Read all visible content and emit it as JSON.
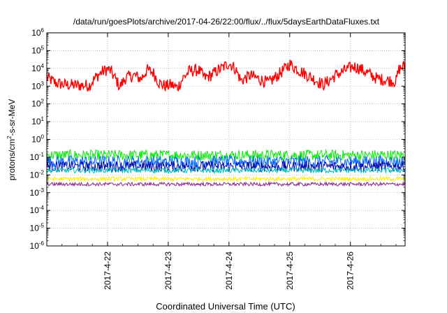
{
  "chart_data": {
    "type": "line",
    "title": "/data/run/goesPlots/archive/2017-04-26/22:00/flux/../flux/5daysEarthDataFluxes.txt",
    "xlabel": "Coordinated Universal Time (UTC)",
    "ylabel": {
      "prefix": "protons/cm",
      "sup": "2",
      "suffix": "-s-sr-MeV"
    },
    "yscale": "log",
    "ylim": [
      1e-06,
      1000000.0
    ],
    "xlim": [
      0,
      5.9
    ],
    "grid": true,
    "yticks": [
      {
        "value": -6,
        "base": "10",
        "exp": "-6"
      },
      {
        "value": -5,
        "base": "10",
        "exp": "-5"
      },
      {
        "value": -4,
        "base": "10",
        "exp": "-4"
      },
      {
        "value": -3,
        "base": "10",
        "exp": "-3"
      },
      {
        "value": -2,
        "base": "10",
        "exp": "-2"
      },
      {
        "value": -1,
        "base": "10",
        "exp": "-1"
      },
      {
        "value": 0,
        "base": "10",
        "exp": "0"
      },
      {
        "value": 1,
        "base": "10",
        "exp": "1"
      },
      {
        "value": 2,
        "base": "10",
        "exp": "2"
      },
      {
        "value": 3,
        "base": "10",
        "exp": "3"
      },
      {
        "value": 4,
        "base": "10",
        "exp": "4"
      },
      {
        "value": 5,
        "base": "10",
        "exp": "5"
      },
      {
        "value": 6,
        "base": "10",
        "exp": "6"
      }
    ],
    "xticks": [
      {
        "value": 1,
        "label": "2017-4-22"
      },
      {
        "value": 2,
        "label": "2017-4-23"
      },
      {
        "value": 3,
        "label": "2017-4-24"
      },
      {
        "value": 4,
        "label": "2017-4-25"
      },
      {
        "value": 5,
        "label": "2017-4-26"
      }
    ],
    "series": [
      {
        "color": "#ff0000",
        "noise": 0.35,
        "x": [
          0,
          0.15,
          0.3,
          0.5,
          0.7,
          0.8,
          0.9,
          1.0,
          1.05,
          1.15,
          1.2,
          1.3,
          1.45,
          1.55,
          1.65,
          1.75,
          1.85,
          1.95,
          2.05,
          2.15,
          2.25,
          2.35,
          2.5,
          2.6,
          2.7,
          2.8,
          2.9,
          3.0,
          3.1,
          3.2,
          3.35,
          3.5,
          3.65,
          3.8,
          3.9,
          4.0,
          4.1,
          4.25,
          4.4,
          4.55,
          4.65,
          4.75,
          4.85,
          4.95,
          5.05,
          5.15,
          5.3,
          5.45,
          5.6,
          5.75,
          5.8,
          5.9
        ],
        "y": [
          3000,
          1500,
          1200,
          1100,
          1100,
          3000,
          6000,
          9000,
          7000,
          2000,
          900,
          3000,
          4000,
          2500,
          8000,
          6000,
          1500,
          1000,
          1200,
          800,
          3000,
          7000,
          8000,
          3000,
          4000,
          7000,
          11000,
          20000,
          10000,
          2000,
          4000,
          2500,
          1500,
          4000,
          8000,
          18000,
          10000,
          5000,
          2500,
          1200,
          2000,
          4000,
          6000,
          9000,
          13000,
          10000,
          5000,
          2500,
          2200,
          1800,
          9000,
          15000
        ]
      },
      {
        "color": "#00ee00",
        "noise": 0.3,
        "x": [
          0,
          5.9
        ],
        "y": [
          0.13,
          0.13
        ]
      },
      {
        "color": "#0066ff",
        "noise": 0.35,
        "x": [
          0,
          5.9
        ],
        "y": [
          0.055,
          0.055
        ]
      },
      {
        "color": "#0000aa",
        "noise": 0.3,
        "x": [
          0,
          5.9
        ],
        "y": [
          0.03,
          0.03
        ]
      },
      {
        "color": "#00bbbb",
        "noise": 0.15,
        "x": [
          0,
          5.9
        ],
        "y": [
          0.018,
          0.018
        ]
      },
      {
        "color": "#ffee00",
        "noise": 0.12,
        "x": [
          0,
          5.9
        ],
        "y": [
          0.006,
          0.006
        ]
      },
      {
        "color": "#882288",
        "noise": 0.1,
        "x": [
          0,
          5.9
        ],
        "y": [
          0.003,
          0.003
        ]
      }
    ]
  }
}
